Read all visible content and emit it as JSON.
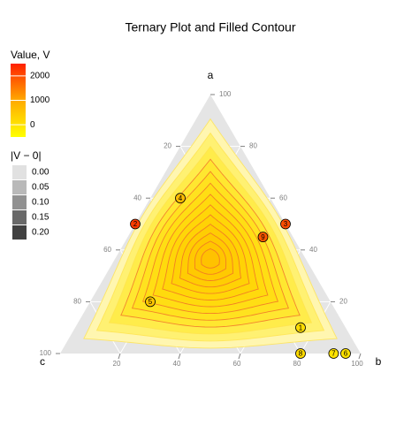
{
  "chart_data": {
    "type": "ternary",
    "title": "Ternary Plot and Filled Contour",
    "vertex_labels": {
      "a": "a",
      "b": "b",
      "c": "c"
    },
    "lim": [
      0,
      100
    ],
    "aticks": [
      20,
      40,
      60,
      80,
      100
    ],
    "bticks": [
      20,
      40,
      60,
      80,
      100
    ],
    "cticks": [
      20,
      40,
      60,
      80,
      100
    ],
    "grid": true,
    "points": [
      {
        "label": "1",
        "a": 10,
        "b": 75,
        "c": 15,
        "value": 100
      },
      {
        "label": "2",
        "a": 50,
        "b": 0,
        "c": 50,
        "value": 2200
      },
      {
        "label": "3",
        "a": 50,
        "b": 50,
        "c": 0,
        "value": 2000
      },
      {
        "label": "4",
        "a": 60,
        "b": 10,
        "c": 30,
        "value": 700
      },
      {
        "label": "5",
        "a": 20,
        "b": 20,
        "c": 60,
        "value": 500
      },
      {
        "label": "6",
        "a": 0,
        "b": 95,
        "c": 5,
        "value": 0
      },
      {
        "label": "7",
        "a": 0,
        "b": 91,
        "c": 9,
        "value": 0
      },
      {
        "label": "8",
        "a": 0,
        "b": 80,
        "c": 20,
        "value": 150
      },
      {
        "label": "9",
        "a": 45,
        "b": 45,
        "c": 10,
        "value": 1900
      }
    ],
    "color_legend": {
      "title": "Value, V",
      "lim": [
        -500,
        2500
      ],
      "ticks": [
        0,
        1000,
        2000
      ],
      "colors": [
        "#ffff00",
        "#ffaa00",
        "#ff2000"
      ]
    },
    "alpha_legend": {
      "title": "|V − 0|",
      "lim": [
        0,
        0.2
      ],
      "ticks": [
        {
          "value": 0,
          "label": "0.00"
        },
        {
          "value": 0.05,
          "label": "0.05"
        },
        {
          "value": 0.1,
          "label": "0.10"
        },
        {
          "value": 0.15,
          "label": "0.15"
        },
        {
          "value": 0.2,
          "label": "0.20"
        }
      ]
    }
  }
}
